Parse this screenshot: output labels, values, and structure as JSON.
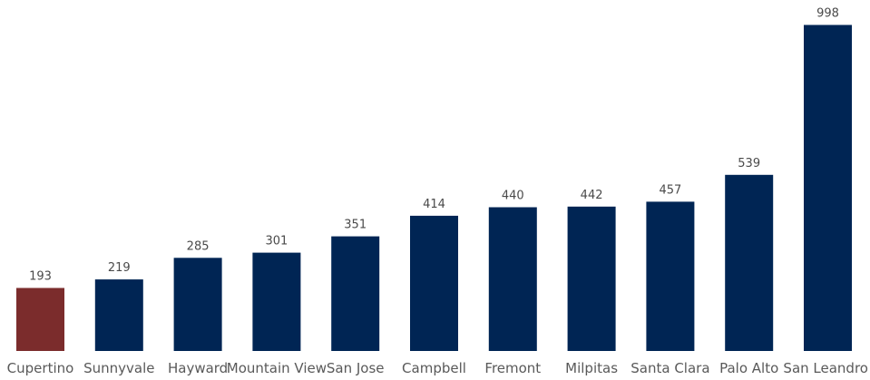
{
  "chart_data": {
    "type": "bar",
    "categories": [
      "Cupertino",
      "Sunnyvale",
      "Hayward",
      "Mountain View",
      "San Jose",
      "Campbell",
      "Fremont",
      "Milpitas",
      "Santa Clara",
      "Palo Alto",
      "San Leandro"
    ],
    "values": [
      193,
      219,
      285,
      301,
      351,
      414,
      440,
      442,
      457,
      539,
      998
    ],
    "ylim": [
      0,
      1000
    ],
    "grid": false,
    "legend": "none",
    "highlight_index": 0,
    "colors": {
      "bar": "#002554",
      "highlight": "#7B2C2C",
      "label": "#4a4a4a",
      "category": "#595959"
    }
  }
}
